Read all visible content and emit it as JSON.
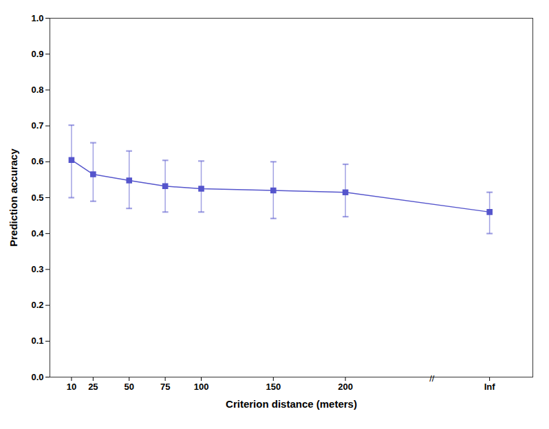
{
  "chart_data": {
    "type": "line",
    "x": [
      10,
      25,
      50,
      75,
      100,
      150,
      200,
      300
    ],
    "values": [
      0.605,
      0.565,
      0.548,
      0.532,
      0.525,
      0.52,
      0.515,
      0.46
    ],
    "error_upper": [
      0.097,
      0.088,
      0.082,
      0.072,
      0.077,
      0.08,
      0.078,
      0.055
    ],
    "error_lower": [
      0.105,
      0.075,
      0.078,
      0.072,
      0.065,
      0.078,
      0.068,
      0.06
    ],
    "color": "#5555cc",
    "marker": "square",
    "line_style": "solid",
    "xlabel": "Criterion distance (meters)",
    "ylabel": "Prediction accuracy",
    "xlim": [
      -5,
      330
    ],
    "xticks": [
      10,
      25,
      50,
      75,
      100,
      150,
      200,
      {
        "value": 300,
        "label": "Inf"
      }
    ],
    "ylim": [
      0,
      1.0
    ],
    "yticks": [
      {
        "value": 0,
        "label": "0.0"
      },
      0.1,
      0.2,
      0.3,
      0.4,
      0.5,
      0.6,
      0.7,
      0.8,
      0.9,
      {
        "value": 1.0,
        "label": "1.0"
      }
    ],
    "annotations": [
      {
        "text": "//",
        "x": 260,
        "y": 0
      }
    ],
    "grid": false
  }
}
